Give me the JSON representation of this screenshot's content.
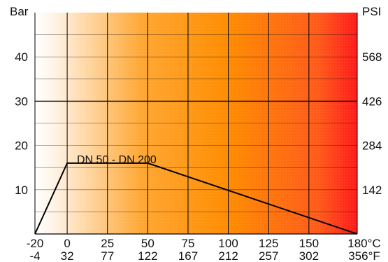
{
  "chart_data": {
    "type": "line",
    "title": "",
    "y_unit_left": "Bar",
    "y_unit_right": "PSI",
    "x_unit_top": "°C",
    "x_unit_bottom": "°F",
    "xlim": [
      -20,
      180
    ],
    "ylim": [
      0,
      50
    ],
    "x_ticks": [
      -20,
      0,
      25,
      50,
      75,
      100,
      125,
      150,
      180
    ],
    "x_tick_labels_top": [
      "-20",
      "0",
      "25",
      "50",
      "75",
      "100",
      "125",
      "150",
      "180"
    ],
    "x_tick_labels_bottom": [
      "-4",
      "32",
      "77",
      "122",
      "167",
      "212",
      "257",
      "302",
      "356"
    ],
    "y_ticks_left": [
      10,
      20,
      30,
      40
    ],
    "y_tick_labels_left": [
      "10",
      "20",
      "30",
      "40"
    ],
    "y_ticks_right": [
      10,
      20,
      30,
      40
    ],
    "y_tick_labels_right": [
      "142",
      "284",
      "426",
      "568"
    ],
    "grid": true,
    "background_gradient": [
      "#ffffff",
      "#fff3e6",
      "#ffa733",
      "#ff8c00",
      "#ff5a1a",
      "#ff1a1a"
    ],
    "series": [
      {
        "name": "",
        "color": "#000000",
        "x": [
          -20,
          0,
          50,
          180
        ],
        "y": [
          0,
          16,
          16,
          0
        ]
      }
    ],
    "annotations": [
      {
        "text": "DN 50 - DN 200",
        "x": 1,
        "y": 16
      }
    ]
  }
}
